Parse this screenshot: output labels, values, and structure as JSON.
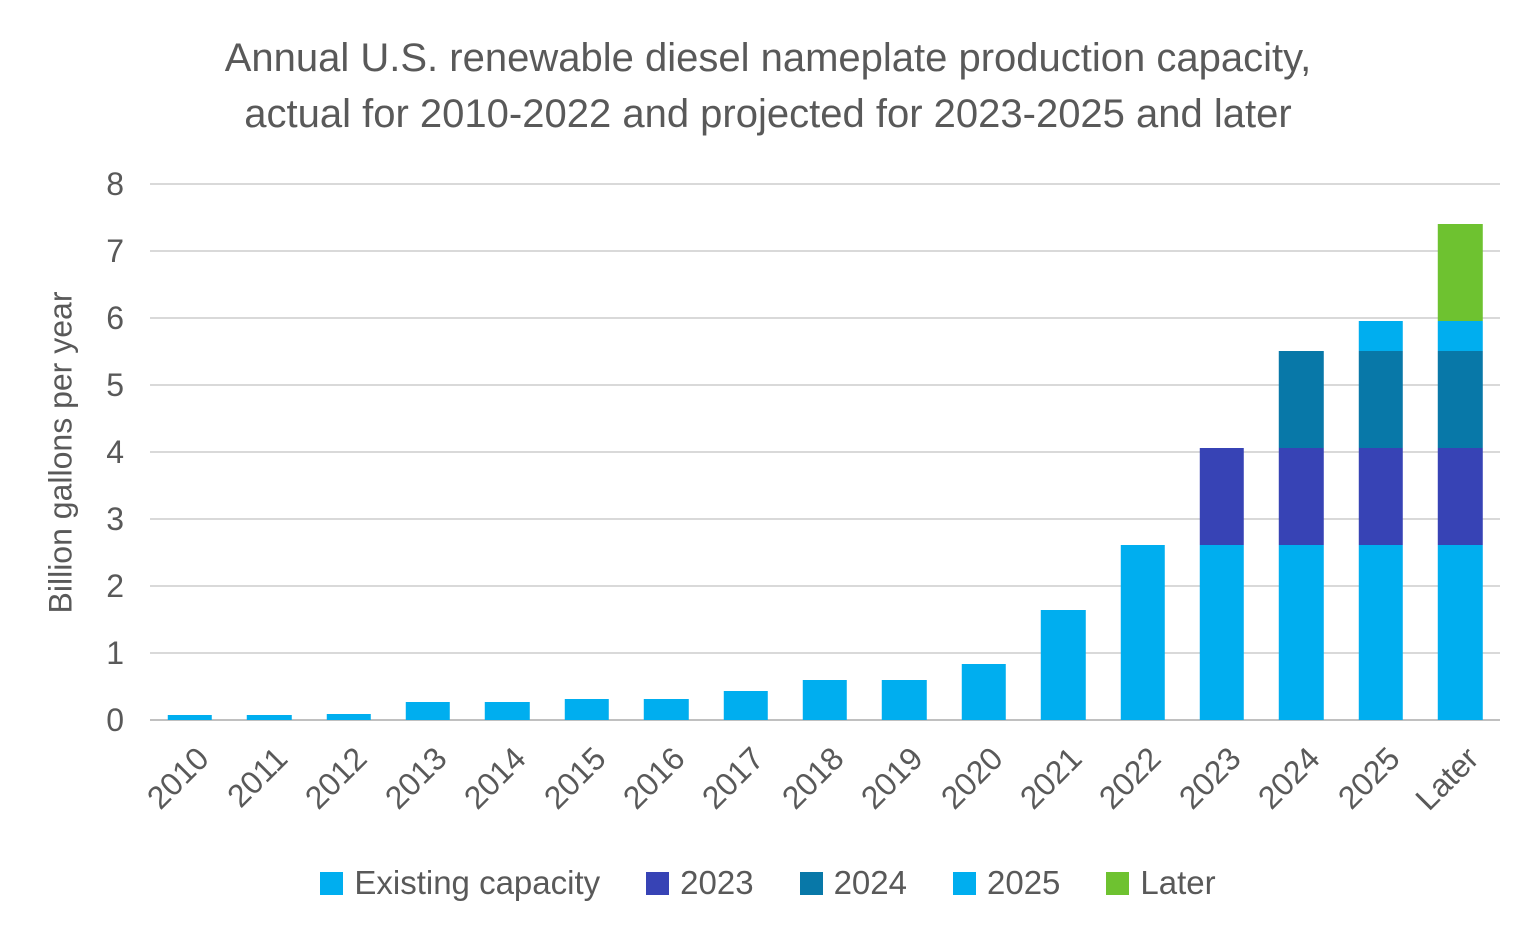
{
  "styles": {
    "background": "#FFFFFF",
    "text_color": "#595959",
    "grid_color": "#D9D9D9",
    "axis_line_color": "#C0C0C0",
    "color_light_blue": "#00AEEF",
    "color_indigo": "#3743B5",
    "color_teal": "#0878A8",
    "color_green": "#6EC230"
  },
  "chart_data": {
    "type": "bar",
    "stacked": true,
    "title": "Annual U.S. renewable diesel nameplate production capacity, actual for 2010-2022 and projected for 2023-2025 and later",
    "title_lines": [
      "Annual U.S. renewable diesel nameplate production capacity,",
      "actual for 2010-2022 and projected for 2023-2025 and later"
    ],
    "xlabel": "",
    "ylabel": "Billion gallons per year",
    "ylim": [
      0,
      8
    ],
    "yticks": [
      0,
      1,
      2,
      3,
      4,
      5,
      6,
      7,
      8
    ],
    "grid": true,
    "legend_position": "bottom",
    "categories": [
      "2010",
      "2011",
      "2012",
      "2013",
      "2014",
      "2015",
      "2016",
      "2017",
      "2018",
      "2019",
      "2020",
      "2021",
      "2022",
      "2023",
      "2024",
      "2025",
      "Later"
    ],
    "series": [
      {
        "name": "Existing capacity",
        "color": "#00AEEF",
        "values": [
          0.08,
          0.08,
          0.09,
          0.27,
          0.27,
          0.31,
          0.31,
          0.43,
          0.6,
          0.6,
          0.83,
          1.64,
          2.61,
          2.61,
          2.61,
          2.61,
          2.61
        ]
      },
      {
        "name": "2023",
        "color": "#3743B5",
        "values": [
          0,
          0,
          0,
          0,
          0,
          0,
          0,
          0,
          0,
          0,
          0,
          0,
          0,
          1.45,
          1.45,
          1.45,
          1.45
        ]
      },
      {
        "name": "2024",
        "color": "#0878A8",
        "values": [
          0,
          0,
          0,
          0,
          0,
          0,
          0,
          0,
          0,
          0,
          0,
          0,
          0,
          0,
          1.45,
          1.45,
          1.45
        ]
      },
      {
        "name": "2025",
        "color": "#00AEEF",
        "values": [
          0,
          0,
          0,
          0,
          0,
          0,
          0,
          0,
          0,
          0,
          0,
          0,
          0,
          0,
          0,
          0.45,
          0.45
        ]
      },
      {
        "name": "Later",
        "color": "#6EC230",
        "values": [
          0,
          0,
          0,
          0,
          0,
          0,
          0,
          0,
          0,
          0,
          0,
          0,
          0,
          0,
          0,
          0,
          1.45
        ]
      }
    ]
  }
}
